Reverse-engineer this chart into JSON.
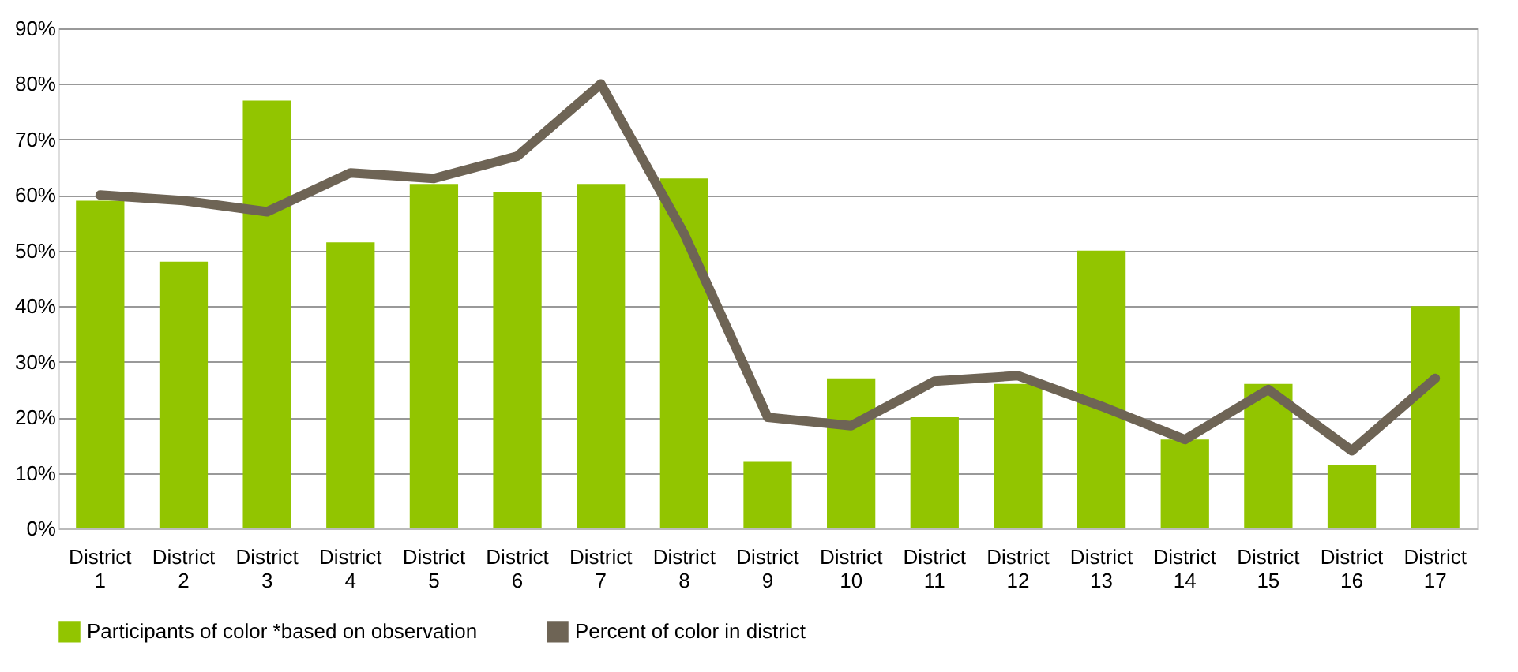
{
  "chart_data": {
    "type": "bar",
    "categories": [
      "District 1",
      "District 2",
      "District 3",
      "District 4",
      "District 5",
      "District 6",
      "District 7",
      "District 8",
      "District 9",
      "District 10",
      "District 11",
      "District 12",
      "District 13",
      "District 14",
      "District 15",
      "District 16",
      "District 17"
    ],
    "series": [
      {
        "name": "Participants of color *based on observation",
        "color": "#92c500",
        "values": [
          59,
          48,
          77,
          51.5,
          62,
          60.5,
          62,
          63,
          12,
          27,
          20,
          26,
          50,
          16,
          26,
          11.5,
          40
        ]
      },
      {
        "name": "Percent of color in district",
        "color": "#6e6455",
        "type": "line",
        "values": [
          60,
          59,
          57,
          64,
          63,
          67,
          80,
          53,
          20,
          18.5,
          26.5,
          27.5,
          22,
          16,
          25,
          14,
          27
        ]
      }
    ],
    "ylim": [
      0,
      90
    ],
    "yticks": [
      {
        "value": 0,
        "label": "0%"
      },
      {
        "value": 10,
        "label": "10%"
      },
      {
        "value": 20,
        "label": "20%"
      },
      {
        "value": 30,
        "label": "30%"
      },
      {
        "value": 40,
        "label": "40%"
      },
      {
        "value": 50,
        "label": "50%"
      },
      {
        "value": 60,
        "label": "60%"
      },
      {
        "value": 70,
        "label": "70%"
      },
      {
        "value": 80,
        "label": "80%"
      },
      {
        "value": 90,
        "label": "90%"
      }
    ],
    "grid": "y",
    "legend": "bottom",
    "marker": "none"
  }
}
